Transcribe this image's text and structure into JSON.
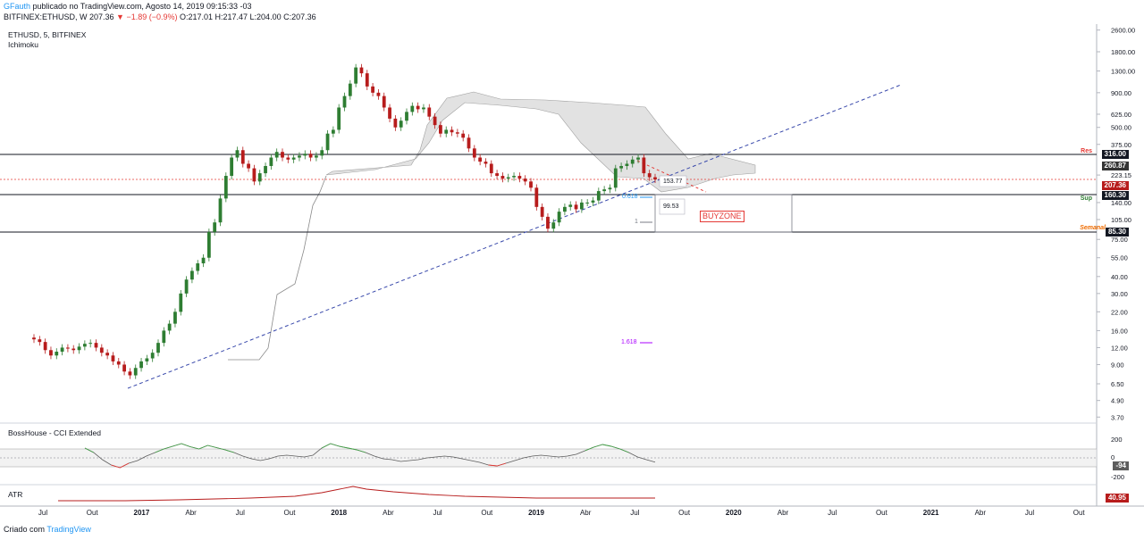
{
  "header": {
    "author": "GFauth",
    "published": " publicado no TradingView.com, Agosto 14, 2019 09:15:33 -03",
    "symbol_line": "BITFINEX:ETHUSD, W  207.36 ",
    "change": "▼ −1.89 (−0.9%)",
    "ohlc": " O:217.01 H:217.47 L:204.00 C:207.36"
  },
  "chart": {
    "title": "ETHUSD, 5, BITFINEX",
    "indicator": "Ichimoku"
  },
  "annotations": {
    "res": "Res",
    "sup": "Sup",
    "semanal": "Semanal",
    "fib_0618": "0.618",
    "fib_1": "1",
    "fib_1618": "1.618",
    "box_low": "99.53",
    "box_high": "153.77",
    "buyzone": "BUYZONE"
  },
  "price_tags": [
    {
      "label": "316.00",
      "value": 316,
      "color": "#131722"
    },
    {
      "label": "260.87",
      "value": 260.87,
      "color": "#333333"
    },
    {
      "label": "207.36",
      "value": 207.36,
      "color": "#b71c1c"
    },
    {
      "label": "160.30",
      "value": 160.3,
      "color": "#131722"
    },
    {
      "label": "85.30",
      "value": 85.3,
      "color": "#131722"
    }
  ],
  "cci": {
    "title": "BossHouse - CCI Extended",
    "ticks": [
      "200",
      "0",
      "-200"
    ],
    "last_label": "-94"
  },
  "atr": {
    "title": "ATR",
    "last_label": "40.95"
  },
  "footer": {
    "prefix": "Criado com ",
    "brand": "TradingView"
  },
  "colors": {
    "up": "#2e7d32",
    "down": "#b71c1c",
    "cloud": "#d6d6d6",
    "trend": "#3949ab",
    "cci_up": "#43a047",
    "cci_down": "#e53935"
  },
  "chart_data": {
    "type": "candlestick",
    "title": "ETHUSD, 5, BITFINEX",
    "y_scale": "log",
    "ylim": [
      3.7,
      2600
    ],
    "y_ticks": [
      "2600.00",
      "1800.00",
      "1300.00",
      "900.00",
      "625.00",
      "500.00",
      "375.00",
      "223.15",
      "140.00",
      "105.00",
      "75.00",
      "55.00",
      "40.00",
      "30.00",
      "22.00",
      "16.00",
      "12.00",
      "9.00",
      "6.50",
      "4.90",
      "3.70"
    ],
    "x_ticks": [
      "Jul",
      "Out",
      "2017",
      "Abr",
      "Jul",
      "Out",
      "2018",
      "Abr",
      "Jul",
      "Out",
      "2019",
      "Abr",
      "Jul",
      "Out",
      "2020",
      "Abr",
      "Jul",
      "Out",
      "2021",
      "Abr",
      "Jul",
      "Out"
    ],
    "x_ticks_bold": [
      "2017",
      "2018",
      "2019",
      "2020",
      "2021"
    ],
    "horizontal_levels": [
      316.0,
      160.3,
      85.3
    ],
    "current_price": 207.36,
    "weekly_closes_approx": [
      13.8,
      13.2,
      11.5,
      10.5,
      11.2,
      12.0,
      11.8,
      11.5,
      12.2,
      12.8,
      13.0,
      12.0,
      11.0,
      10.5,
      9.5,
      9.0,
      8.0,
      7.5,
      8.5,
      9.5,
      10.0,
      11.0,
      13.0,
      16.0,
      18.0,
      22.0,
      30.0,
      38.0,
      44.0,
      50.0,
      55.0,
      85.0,
      100.0,
      150.0,
      220.0,
      300.0,
      340.0,
      270.0,
      250.0,
      200.0,
      230.0,
      260.0,
      300.0,
      330.0,
      300.0,
      290.0,
      300.0,
      310.0,
      320.0,
      300.0,
      310.0,
      340.0,
      450.0,
      480.0,
      700.0,
      850.0,
      1050.0,
      1380.0,
      1250.0,
      1000.0,
      900.0,
      850.0,
      700.0,
      580.0,
      500.0,
      560.0,
      650.0,
      720.0,
      680.0,
      700.0,
      600.0,
      520.0,
      450.0,
      480.0,
      460.0,
      450.0,
      420.0,
      350.0,
      300.0,
      280.0,
      270.0,
      230.0,
      220.0,
      210.0,
      215.0,
      220.0,
      210.0,
      200.0,
      180.0,
      130.0,
      110.0,
      90.0,
      100.0,
      120.0,
      130.0,
      135.0,
      125.0,
      140.0,
      140.0,
      145.0,
      170.0,
      175.0,
      180.0,
      250.0,
      260.0,
      270.0,
      290.0,
      300.0,
      230.0,
      215.0,
      207.36
    ]
  }
}
